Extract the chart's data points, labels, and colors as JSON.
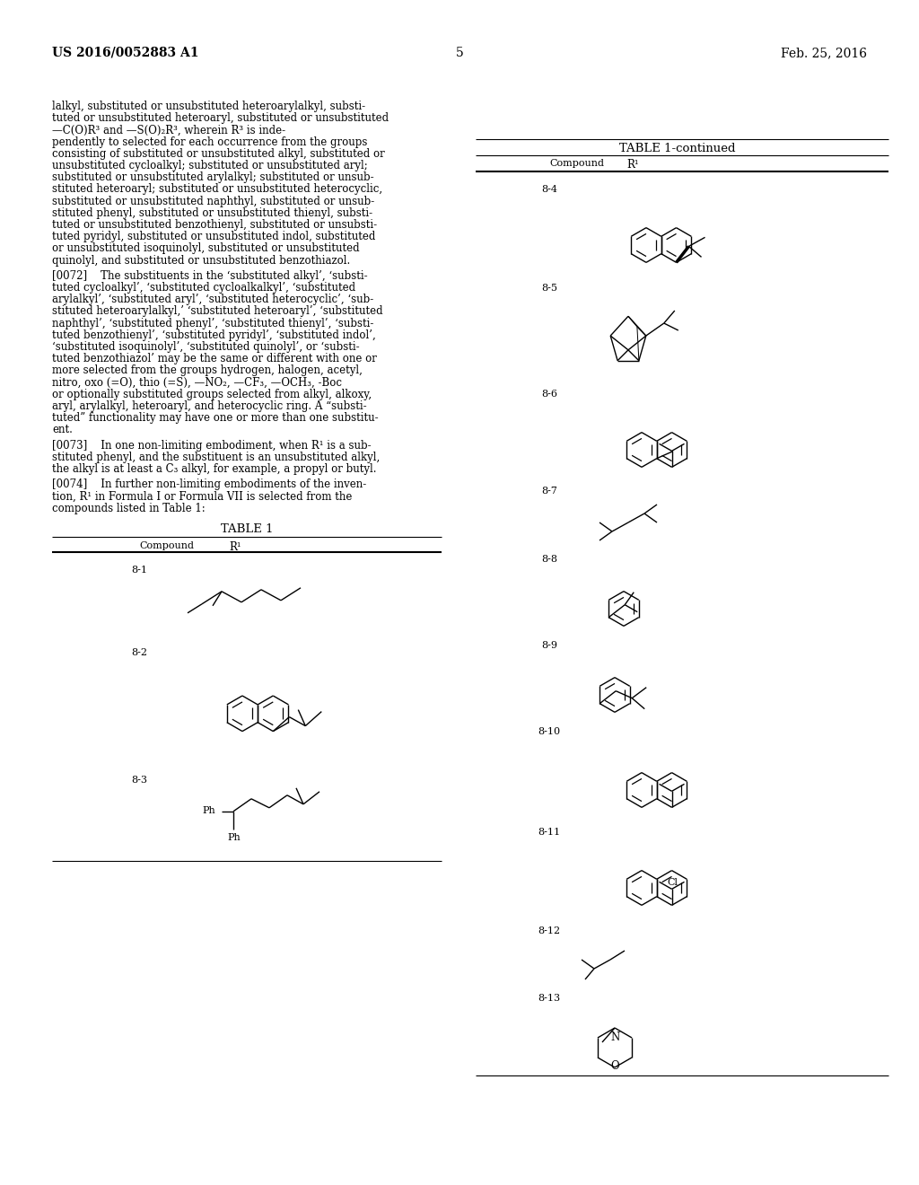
{
  "bg_color": "#ffffff",
  "header_left": "US 2016/0052883 A1",
  "header_right": "Feb. 25, 2016",
  "page_number": "5",
  "text_color": "#000000"
}
